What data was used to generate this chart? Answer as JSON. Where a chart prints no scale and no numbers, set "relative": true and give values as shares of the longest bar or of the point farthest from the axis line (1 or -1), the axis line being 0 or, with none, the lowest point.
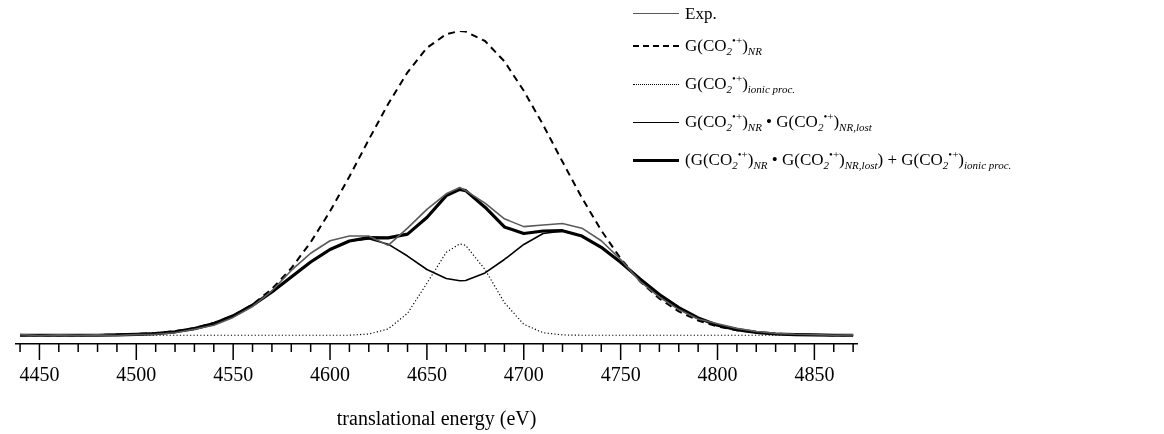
{
  "chart_data": {
    "type": "line",
    "relative": true,
    "xlabel": "translational energy (eV)",
    "legend": "top right",
    "marker": "none",
    "x": [
      4440,
      4450,
      4460,
      4470,
      4480,
      4490,
      4500,
      4510,
      4520,
      4530,
      4540,
      4550,
      4560,
      4570,
      4580,
      4590,
      4600,
      4610,
      4620,
      4630,
      4640,
      4650,
      4660,
      4667,
      4670,
      4680,
      4690,
      4700,
      4710,
      4720,
      4730,
      4740,
      4750,
      4760,
      4770,
      4780,
      4790,
      4800,
      4810,
      4820,
      4830,
      4840,
      4850,
      4860,
      4870
    ],
    "xlim": [
      4438,
      4872
    ],
    "xticks": [
      {
        "value": 4440,
        "label": null
      },
      4450,
      {
        "value": 4460,
        "label": null
      },
      {
        "value": 4470,
        "label": null
      },
      {
        "value": 4480,
        "label": null
      },
      {
        "value": 4490,
        "label": null
      },
      4500,
      {
        "value": 4510,
        "label": null
      },
      {
        "value": 4520,
        "label": null
      },
      {
        "value": 4530,
        "label": null
      },
      {
        "value": 4540,
        "label": null
      },
      4550,
      {
        "value": 4560,
        "label": null
      },
      {
        "value": 4570,
        "label": null
      },
      {
        "value": 4580,
        "label": null
      },
      {
        "value": 4590,
        "label": null
      },
      4600,
      {
        "value": 4610,
        "label": null
      },
      {
        "value": 4620,
        "label": null
      },
      {
        "value": 4630,
        "label": null
      },
      {
        "value": 4640,
        "label": null
      },
      4650,
      {
        "value": 4660,
        "label": null
      },
      {
        "value": 4670,
        "label": null
      },
      {
        "value": 4680,
        "label": null
      },
      {
        "value": 4690,
        "label": null
      },
      4700,
      {
        "value": 4710,
        "label": null
      },
      {
        "value": 4720,
        "label": null
      },
      {
        "value": 4730,
        "label": null
      },
      {
        "value": 4740,
        "label": null
      },
      4750,
      {
        "value": 4760,
        "label": null
      },
      {
        "value": 4770,
        "label": null
      },
      {
        "value": 4780,
        "label": null
      },
      {
        "value": 4790,
        "label": null
      },
      4800,
      {
        "value": 4810,
        "label": null
      },
      {
        "value": 4820,
        "label": null
      },
      {
        "value": 4830,
        "label": null
      },
      {
        "value": 4840,
        "label": null
      },
      4850,
      {
        "value": 4860,
        "label": null
      },
      {
        "value": 4870,
        "label": null
      }
    ],
    "series": [
      {
        "name": "Exp.",
        "color": "#5a5a5a",
        "line_style": "solid",
        "values": [
          0.03,
          0.027,
          0.029,
          0.028,
          0.029,
          0.027,
          0.03,
          0.031,
          0.036,
          0.047,
          0.06,
          0.085,
          0.12,
          0.17,
          0.235,
          0.29,
          0.33,
          0.345,
          0.345,
          0.315,
          0.37,
          0.43,
          0.48,
          0.5,
          0.49,
          0.45,
          0.4,
          0.375,
          0.38,
          0.385,
          0.37,
          0.33,
          0.27,
          0.2,
          0.15,
          0.11,
          0.08,
          0.065,
          0.05,
          0.04,
          0.034,
          0.031,
          0.03,
          0.028,
          0.029
        ]
      },
      {
        "name": "G(CO$_{2}$$^{•+}$)$_{NR}$",
        "color": "#000000",
        "line_style": "dashed",
        "values": [
          0.028,
          0.028,
          0.028,
          0.028,
          0.029,
          0.03,
          0.032,
          0.035,
          0.041,
          0.051,
          0.067,
          0.091,
          0.126,
          0.176,
          0.242,
          0.325,
          0.424,
          0.535,
          0.653,
          0.767,
          0.868,
          0.946,
          0.99,
          1,
          0.998,
          0.968,
          0.903,
          0.809,
          0.7,
          0.582,
          0.467,
          0.363,
          0.273,
          0.2,
          0.145,
          0.104,
          0.075,
          0.056,
          0.044,
          0.037,
          0.033,
          0.03,
          0.029,
          0.028,
          0.028
        ]
      },
      {
        "name": "G(CO$_{2}$$^{•+}$)$_{ionic proc.}$",
        "color": "#000000",
        "line_style": "dotted",
        "values": [
          0.028,
          0.028,
          0.028,
          0.028,
          0.028,
          0.028,
          0.028,
          0.028,
          0.028,
          0.028,
          0.028,
          0.028,
          0.028,
          0.028,
          0.028,
          0.028,
          0.028,
          0.028,
          0.032,
          0.048,
          0.098,
          0.194,
          0.293,
          0.32,
          0.315,
          0.238,
          0.132,
          0.063,
          0.036,
          0.029,
          0.028,
          0.028,
          0.028,
          0.028,
          0.028,
          0.028,
          0.028,
          0.028,
          0.028,
          0.028,
          0.028,
          0.028,
          0.028,
          0.028,
          0.028
        ]
      },
      {
        "name": "G(CO$_{2}$$^{•+}$)$_{NR}$ • G(CO$_{2}$$^{•+}$)$_{NR,lost}$",
        "color": "#000000",
        "line_style": "solid",
        "values": [
          0.028,
          0.028,
          0.028,
          0.028,
          0.028,
          0.029,
          0.031,
          0.033,
          0.039,
          0.049,
          0.065,
          0.09,
          0.124,
          0.166,
          0.214,
          0.262,
          0.302,
          0.329,
          0.336,
          0.319,
          0.281,
          0.238,
          0.209,
          0.202,
          0.203,
          0.227,
          0.27,
          0.318,
          0.353,
          0.361,
          0.344,
          0.309,
          0.261,
          0.208,
          0.158,
          0.116,
          0.083,
          0.06,
          0.046,
          0.037,
          0.032,
          0.03,
          0.029,
          0.028,
          0.028
        ]
      },
      {
        "name": "(G(CO$_{2}$$^{•+}$)$_{NR}$ • G(CO$_{2}$$^{•+}$)$_{NR,lost}$) + G(CO$_{2}$$^{•+}$)$_{ionic proc.}$",
        "color": "#000000",
        "line_style": "solid",
        "values": [
          0.028,
          0.028,
          0.028,
          0.028,
          0.028,
          0.029,
          0.031,
          0.033,
          0.039,
          0.049,
          0.065,
          0.09,
          0.124,
          0.166,
          0.214,
          0.262,
          0.302,
          0.329,
          0.34,
          0.339,
          0.351,
          0.404,
          0.474,
          0.494,
          0.49,
          0.437,
          0.374,
          0.353,
          0.361,
          0.362,
          0.345,
          0.309,
          0.261,
          0.208,
          0.158,
          0.116,
          0.083,
          0.06,
          0.046,
          0.037,
          0.032,
          0.03,
          0.029,
          0.028,
          0.028
        ]
      }
    ]
  }
}
